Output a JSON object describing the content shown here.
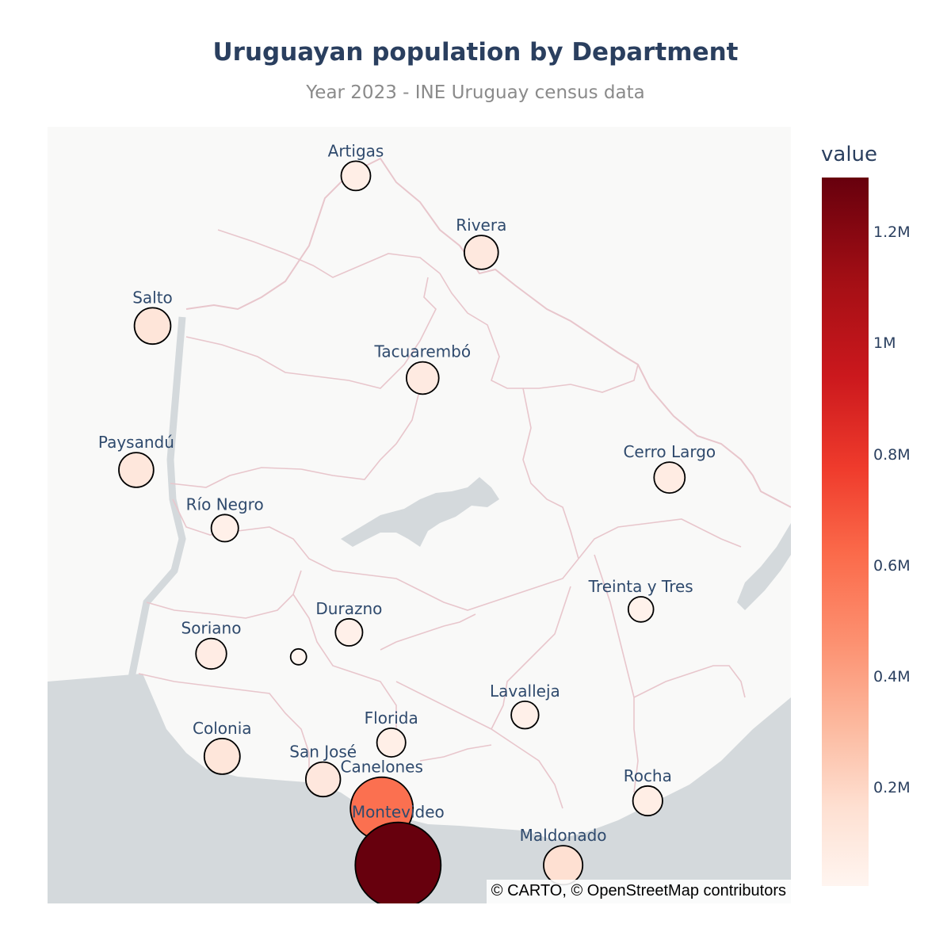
{
  "title": "Uruguayan population by Department",
  "subtitle": "Year 2023 - INE Uruguay census data",
  "attribution": "© CARTO, © OpenStreetMap contributors",
  "colorbar": {
    "title": "value",
    "ticks": [
      {
        "label": "1.2M",
        "value": 1200000
      },
      {
        "label": "1M",
        "value": 1000000
      },
      {
        "label": "0.8M",
        "value": 800000
      },
      {
        "label": "0.6M",
        "value": 600000
      },
      {
        "label": "0.4M",
        "value": 400000
      },
      {
        "label": "0.2M",
        "value": 200000
      }
    ],
    "range": [
      25000,
      1300000
    ],
    "colorscale": "Reds"
  },
  "map": {
    "basemap": "carto-positron",
    "land_color": "#f9f9f8",
    "water_color": "#d4d9dc",
    "boundary_color": "#e8c6cc",
    "marker_outline_color": "#000000"
  },
  "departments": [
    {
      "name": "Artigas",
      "lat": -30.4,
      "lon": -56.47,
      "value": 73000
    },
    {
      "name": "Rivera",
      "lat": -30.9,
      "lon": -55.55,
      "value": 110000
    },
    {
      "name": "Salto",
      "lat": -31.38,
      "lon": -57.96,
      "value": 134000
    },
    {
      "name": "Tacuarembó",
      "lat": -31.72,
      "lon": -55.98,
      "value": 96000
    },
    {
      "name": "Paysandú",
      "lat": -32.32,
      "lon": -58.08,
      "value": 118000
    },
    {
      "name": "Cerro Largo",
      "lat": -32.37,
      "lon": -54.17,
      "value": 85000
    },
    {
      "name": "Río Negro",
      "lat": -32.7,
      "lon": -57.43,
      "value": 58000
    },
    {
      "name": "Treinta y Tres",
      "lat": -33.23,
      "lon": -54.38,
      "value": 48000
    },
    {
      "name": "Durazno",
      "lat": -33.38,
      "lon": -56.52,
      "value": 58000
    },
    {
      "name": "Soriano",
      "lat": -33.52,
      "lon": -57.53,
      "value": 82000
    },
    {
      "name": "",
      "lat": -33.54,
      "lon": -56.89,
      "value": 25000
    },
    {
      "name": "Lavalleja",
      "lat": -33.92,
      "lon": -55.23,
      "value": 60000
    },
    {
      "name": "Colonia",
      "lat": -34.19,
      "lon": -57.45,
      "value": 128000
    },
    {
      "name": "Florida",
      "lat": -34.1,
      "lon": -56.21,
      "value": 68000
    },
    {
      "name": "San José",
      "lat": -34.34,
      "lon": -56.71,
      "value": 116000
    },
    {
      "name": "Canelones",
      "lat": -34.53,
      "lon": -56.28,
      "value": 600000
    },
    {
      "name": "Rocha",
      "lat": -34.48,
      "lon": -54.33,
      "value": 75000
    },
    {
      "name": "Montevideo",
      "lat": -34.9,
      "lon": -56.16,
      "value": 1300000
    },
    {
      "name": "Maldonado",
      "lat": -34.9,
      "lon": -54.95,
      "value": 165000
    }
  ]
}
